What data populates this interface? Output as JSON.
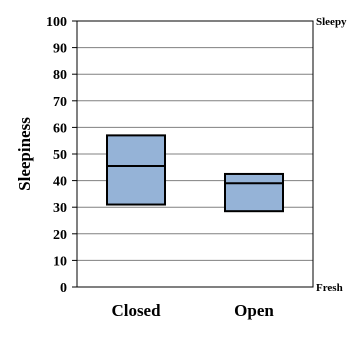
{
  "chart_data": {
    "type": "box",
    "ylabel": "Sleepiness",
    "xlabel": "",
    "title": "",
    "ylim": [
      0,
      100
    ],
    "yticks": [
      0,
      10,
      20,
      30,
      40,
      50,
      60,
      70,
      80,
      90,
      100
    ],
    "grid": true,
    "top_anchor_label": "Sleepy",
    "bottom_anchor_label": "Fresh",
    "box_color": "#95b3d7",
    "categories": [
      "Closed",
      "Open"
    ],
    "boxes": [
      {
        "category": "Closed",
        "q1": 31,
        "median": 45.5,
        "q3": 57
      },
      {
        "category": "Open",
        "q1": 28.5,
        "median": 39,
        "q3": 42.5
      }
    ]
  }
}
